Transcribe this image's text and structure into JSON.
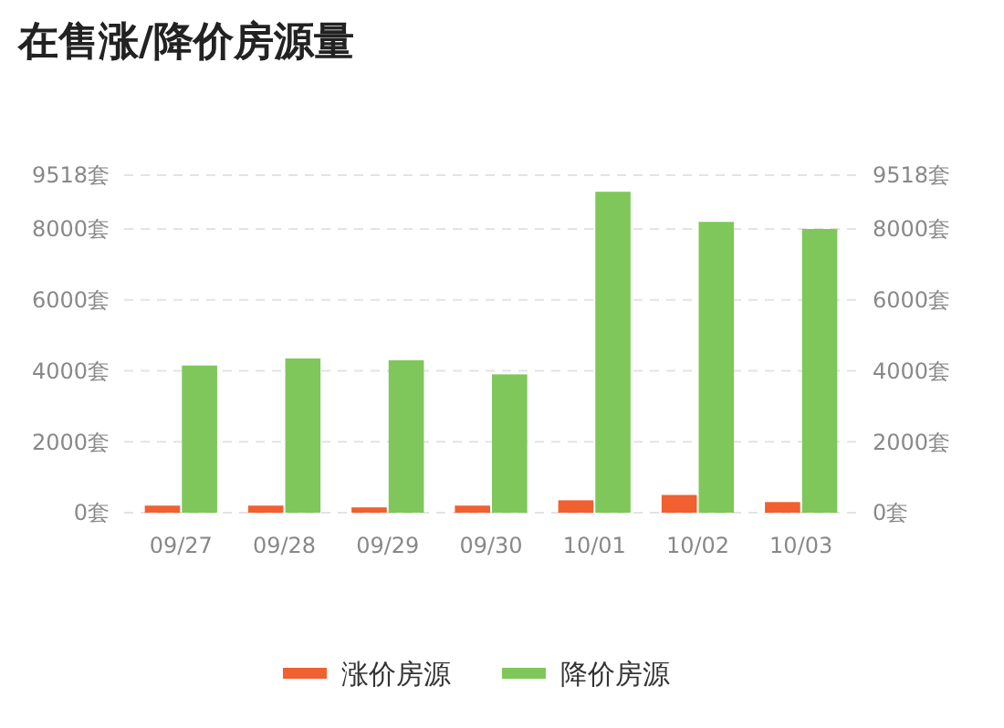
{
  "chart_data": {
    "type": "bar",
    "title": "在售涨/降价房源量",
    "categories": [
      "09/27",
      "09/28",
      "09/29",
      "09/30",
      "10/01",
      "10/02",
      "10/03"
    ],
    "series": [
      {
        "name": "涨价房源",
        "color": "#f06030",
        "values": [
          200,
          200,
          150,
          200,
          350,
          500,
          300
        ]
      },
      {
        "name": "降价房源",
        "color": "#7fc75a",
        "values": [
          4150,
          4350,
          4300,
          3900,
          9050,
          8200,
          8000
        ]
      }
    ],
    "ylim": [
      0,
      9518
    ],
    "yticks": [
      {
        "value": 0,
        "label": "0套"
      },
      {
        "value": 2000,
        "label": "2000套"
      },
      {
        "value": 4000,
        "label": "4000套"
      },
      {
        "value": 6000,
        "label": "6000套"
      },
      {
        "value": 8000,
        "label": "8000套"
      },
      {
        "value": 9518,
        "label": "9518套"
      }
    ],
    "y2lim": [
      0,
      9518
    ],
    "y2ticks": [
      {
        "value": 0,
        "label": "0套"
      },
      {
        "value": 2000,
        "label": "2000套"
      },
      {
        "value": 4000,
        "label": "4000套"
      },
      {
        "value": 6000,
        "label": "6000套"
      },
      {
        "value": 8000,
        "label": "8000套"
      },
      {
        "value": 9518,
        "label": "9518套"
      }
    ],
    "grid": "y",
    "legend": "bottom"
  }
}
